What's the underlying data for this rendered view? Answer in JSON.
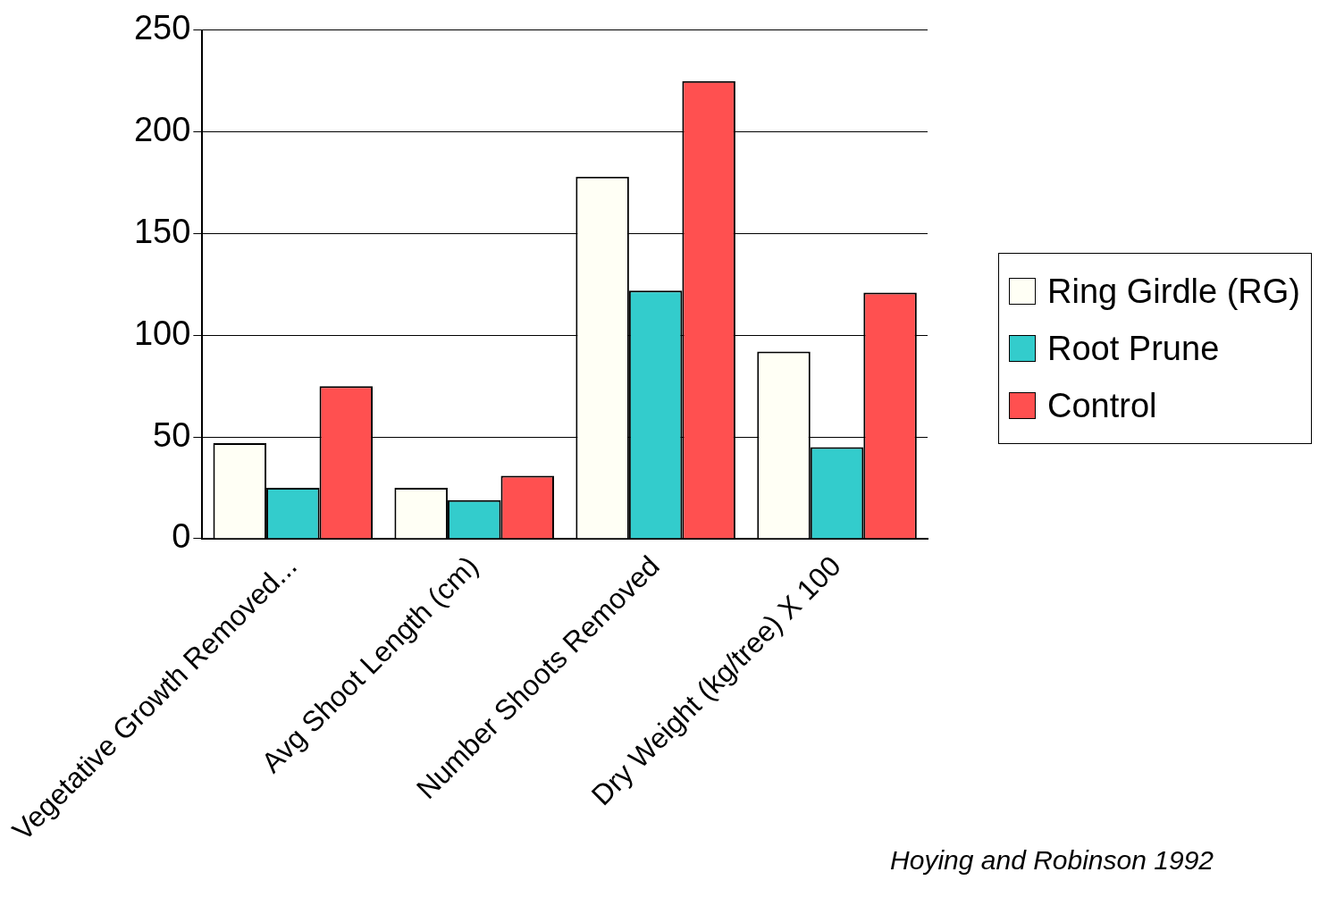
{
  "chart_data": {
    "type": "bar",
    "categories": [
      "Vegetative Growth Removed...",
      "Avg Shoot Length (cm)",
      "Number Shoots Removed",
      "Dry Weight (kg/tree) X 100"
    ],
    "series": [
      {
        "name": "Ring Girdle (RG)",
        "color": "#fffff5",
        "values": [
          47,
          25,
          178,
          92
        ]
      },
      {
        "name": "Root Prune",
        "color": "#33cccc",
        "values": [
          25,
          19,
          122,
          45
        ]
      },
      {
        "name": "Control",
        "color": "#ff5050",
        "values": [
          75,
          31,
          225,
          121
        ]
      }
    ],
    "ylim": [
      0,
      250
    ],
    "yticks": [
      0,
      50,
      100,
      150,
      200,
      250
    ],
    "grid": "y",
    "legend": "right",
    "annotations": [
      "Hoying and Robinson 1992"
    ]
  }
}
